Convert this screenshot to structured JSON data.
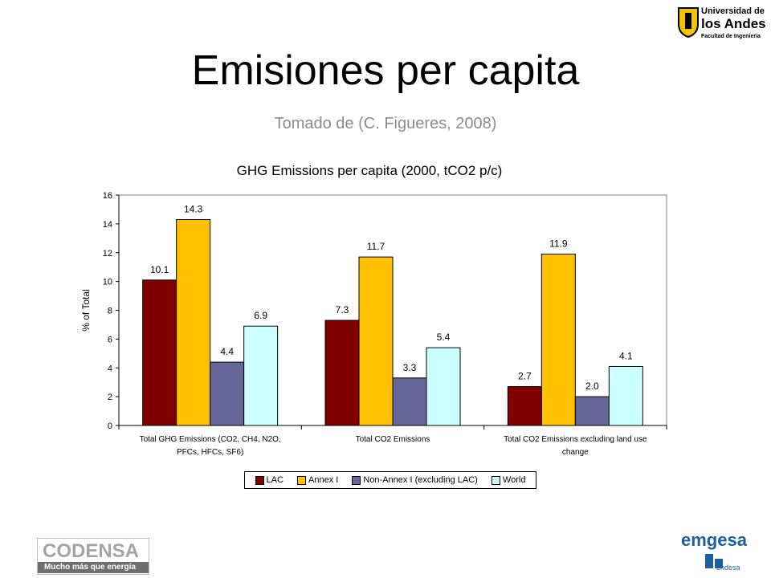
{
  "slide": {
    "title": "Emisiones per capita",
    "subtitle": "Tomado de (C. Figueres, 2008)"
  },
  "logos": {
    "uniandes": {
      "line1": "Universidad de",
      "line2": "los Andes",
      "line3": "Facultad de Ingeniería"
    },
    "codensa": {
      "name": "CODENSA",
      "tagline": "Mucho más que energía"
    },
    "emgesa": {
      "name": "emgesa",
      "sub": "endesa"
    }
  },
  "chart_data": {
    "type": "bar",
    "title": "GHG Emissions per capita (2000, tCO2 p/c)",
    "ylabel": "% of Total",
    "ylim": [
      0,
      16
    ],
    "yticks": [
      0,
      2,
      4,
      6,
      8,
      10,
      12,
      14,
      16
    ],
    "categories": [
      [
        "Total GHG Emissions (CO2, CH4, N2O,",
        "PFCs, HFCs, SF6)"
      ],
      [
        "Total CO2 Emissions"
      ],
      [
        "Total CO2 Emissions excluding land use",
        "change"
      ]
    ],
    "series": [
      {
        "name": "LAC",
        "color": "#800000",
        "values": [
          10.1,
          7.3,
          2.7
        ]
      },
      {
        "name": "Annex I",
        "color": "#ffc000",
        "values": [
          14.3,
          11.7,
          11.9
        ]
      },
      {
        "name": "Non-Annex I (excluding LAC)",
        "color": "#666699",
        "values": [
          4.4,
          3.3,
          2.0
        ]
      },
      {
        "name": "World",
        "color": "#ccffff",
        "values": [
          6.9,
          5.4,
          4.1
        ]
      }
    ],
    "data_labels": [
      [
        "10.1",
        "7.3",
        "2.7"
      ],
      [
        "14.3",
        "11.7",
        "11.9"
      ],
      [
        "4.4",
        "3.3",
        "2.0"
      ],
      [
        "6.9",
        "5.4",
        "4.1"
      ]
    ],
    "legend_position": "bottom",
    "grid": false
  }
}
